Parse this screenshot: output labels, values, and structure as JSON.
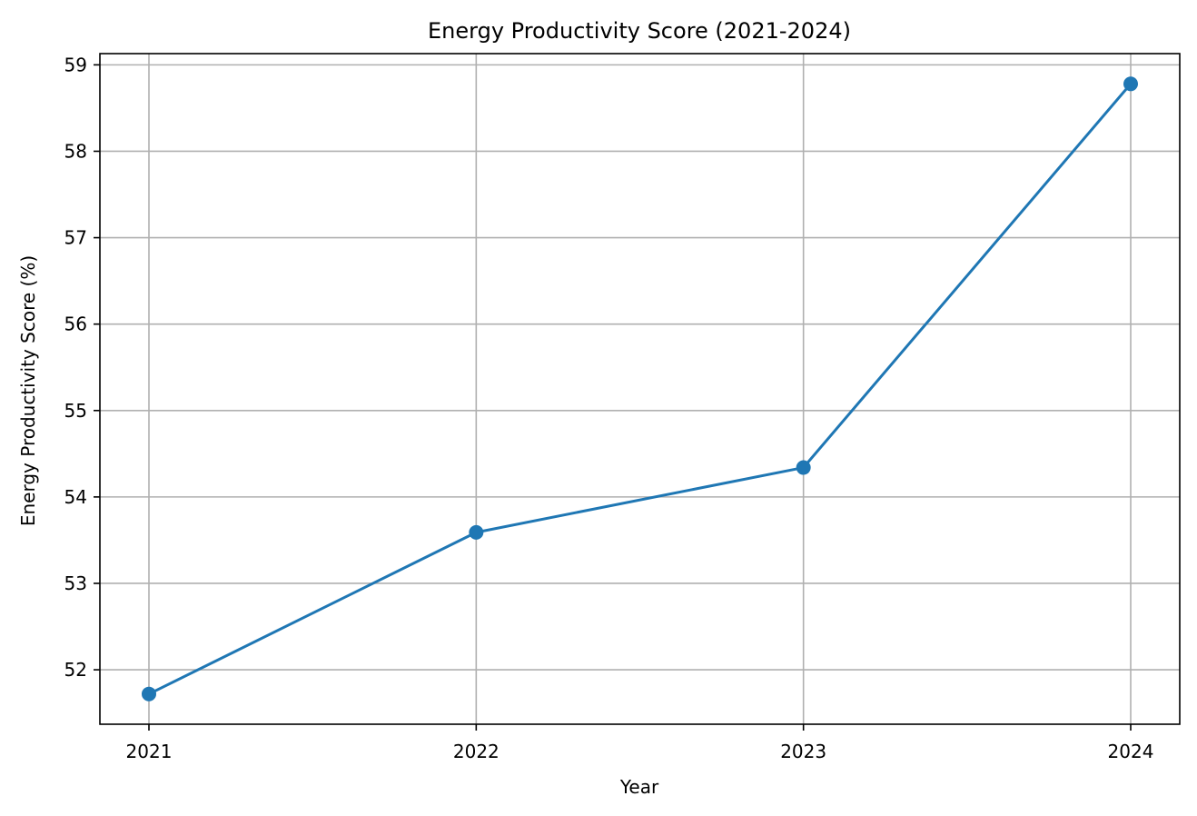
{
  "chart_data": {
    "type": "line",
    "title": "Energy Productivity Score (2021-2024)",
    "xlabel": "Year",
    "ylabel": "Energy Productivity Score (%)",
    "categories": [
      "2021",
      "2022",
      "2023",
      "2024"
    ],
    "series": [
      {
        "values": [
          51.72,
          53.59,
          54.34,
          58.78
        ],
        "color": "#1f77b4",
        "marker": "circle"
      }
    ],
    "yticks": [
      52,
      53,
      54,
      55,
      56,
      57,
      58,
      59
    ],
    "ylim": [
      51.37,
      59.13
    ],
    "grid": true,
    "grid_color": "#b0b0b0",
    "axis_color": "#000000",
    "legend": "none"
  }
}
